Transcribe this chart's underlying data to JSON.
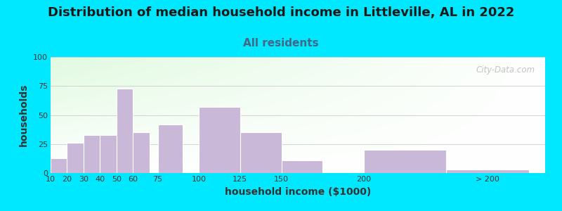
{
  "title": "Distribution of median household income in Littleville, AL in 2022",
  "subtitle": "All residents",
  "xlabel": "household income ($1000)",
  "ylabel": "households",
  "bar_labels": [
    "10",
    "20",
    "30",
    "40",
    "50",
    "60",
    "75",
    "100",
    "125",
    "150",
    "200",
    "> 200"
  ],
  "bar_values": [
    13,
    26,
    33,
    33,
    73,
    35,
    42,
    57,
    35,
    11,
    20,
    3
  ],
  "bar_lefts": [
    10,
    20,
    30,
    40,
    50,
    60,
    75,
    100,
    125,
    150,
    200,
    250
  ],
  "bar_widths": [
    10,
    10,
    10,
    10,
    10,
    10,
    15,
    25,
    25,
    25,
    50,
    50
  ],
  "bar_color": "#c9b8d8",
  "bar_edgecolor": "#ffffff",
  "ylim": [
    0,
    100
  ],
  "yticks": [
    0,
    25,
    50,
    75,
    100
  ],
  "xlim_left": 10,
  "xlim_right": 310,
  "background_outer": "#00e8ff",
  "title_fontsize": 13,
  "title_color": "#1a1a1a",
  "subtitle_fontsize": 11,
  "subtitle_color": "#446688",
  "xlabel_fontsize": 10,
  "ylabel_fontsize": 10,
  "label_color": "#333333",
  "watermark_text": "City-Data.com",
  "watermark_color": "#b0b0b0",
  "tick_label_positions": [
    10,
    20,
    30,
    40,
    50,
    60,
    75,
    100,
    125,
    150,
    200,
    275
  ]
}
